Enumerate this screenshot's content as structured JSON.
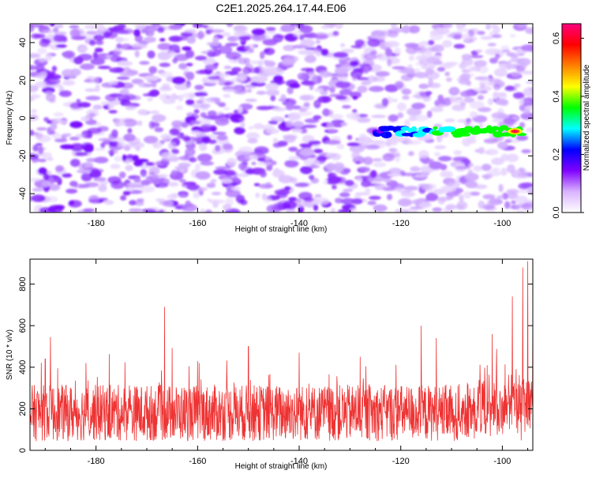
{
  "title": "C2E1.2025.264.17.44.E06",
  "chart_data": [
    {
      "type": "heatmap",
      "title": "C2E1.2025.264.17.44.E06",
      "xlabel": "Height of straight line (km)",
      "ylabel": "Frequency (Hz)",
      "xlim": [
        -193,
        -94
      ],
      "ylim": [
        -50,
        50
      ],
      "xticks": [
        -180,
        -160,
        -140,
        -120,
        -100
      ],
      "yticks": [
        -40,
        -20,
        0,
        20,
        40
      ],
      "xtick_labels": [
        "-180",
        "-160",
        "-140",
        "-120",
        "-100"
      ],
      "ytick_labels": [
        "-40",
        "-20",
        "0",
        "20",
        "40"
      ],
      "colorbar": {
        "label": "Normalized spectral amplitude",
        "range": [
          0.0,
          0.65
        ],
        "ticks": [
          0.0,
          0.2,
          0.4,
          0.6
        ],
        "tick_labels": [
          "0.0",
          "0.2",
          "0.4",
          "0.6"
        ],
        "colormap": [
          "#ffffff",
          "#d9b3ff",
          "#8000ff",
          "#0000ff",
          "#00ffff",
          "#00ff00",
          "#ffff00",
          "#ff8000",
          "#ff0000",
          "#ff0080"
        ]
      },
      "signal": {
        "description": "narrow band near -7 Hz from -125 km to -96 km",
        "frequency_hz": -7,
        "x_start": -125,
        "x_end": -96,
        "peak_x": -97.5,
        "peak_value": 0.65
      },
      "background_level": 0.12
    },
    {
      "type": "line",
      "title": "",
      "xlabel": "Height of straight line (km)",
      "ylabel": "SNR (10 * v/v)",
      "xlim": [
        -193,
        -94
      ],
      "ylim": [
        0,
        920
      ],
      "xticks": [
        -180,
        -160,
        -140,
        -120,
        -100
      ],
      "yticks": [
        0,
        200,
        400,
        600,
        800
      ],
      "xtick_labels": [
        "-180",
        "-160",
        "-140",
        "-120",
        "-100"
      ],
      "ytick_labels": [
        "0",
        "200",
        "400",
        "600",
        "800"
      ],
      "series": [
        {
          "name": "SNR",
          "color": "#ee3333",
          "baseline_mean": 180,
          "baseline_spread": 170,
          "points": [
            {
              "x": -193,
              "y": 150
            },
            {
              "x": -190,
              "y": 440
            },
            {
              "x": -189,
              "y": 545
            },
            {
              "x": -182,
              "y": 420
            },
            {
              "x": -166.5,
              "y": 690
            },
            {
              "x": -160,
              "y": 430
            },
            {
              "x": -150,
              "y": 500
            },
            {
              "x": -140,
              "y": 470
            },
            {
              "x": -128,
              "y": 450
            },
            {
              "x": -116,
              "y": 600
            },
            {
              "x": -113,
              "y": 540
            },
            {
              "x": -102,
              "y": 560
            },
            {
              "x": -98,
              "y": 740
            },
            {
              "x": -96,
              "y": 880
            },
            {
              "x": -95,
              "y": 910
            },
            {
              "x": -94,
              "y": 700
            }
          ]
        }
      ]
    }
  ]
}
